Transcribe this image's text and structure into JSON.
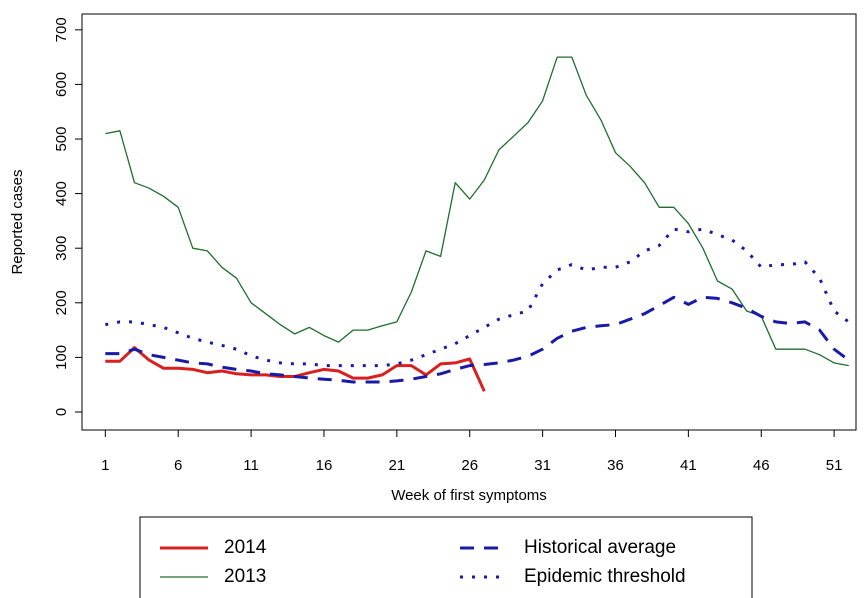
{
  "chart_data": {
    "type": "line",
    "x_label": "Week of first symptoms",
    "y_label": "Reported cases",
    "x": [
      1,
      2,
      3,
      4,
      5,
      6,
      7,
      8,
      9,
      10,
      11,
      12,
      13,
      14,
      15,
      16,
      17,
      18,
      19,
      20,
      21,
      22,
      23,
      24,
      25,
      26,
      27,
      28,
      29,
      30,
      31,
      32,
      33,
      34,
      35,
      36,
      37,
      38,
      39,
      40,
      41,
      42,
      43,
      44,
      45,
      46,
      47,
      48,
      49,
      50,
      51,
      52
    ],
    "xlim": [
      -0.6,
      52.5
    ],
    "xticks": [
      1,
      6,
      11,
      16,
      21,
      26,
      31,
      36,
      41,
      46,
      51
    ],
    "ylim": [
      -33,
      729
    ],
    "yticks": [
      0,
      100,
      200,
      300,
      400,
      500,
      600,
      700
    ],
    "legend": "bottom",
    "series": [
      {
        "name": "2014",
        "color": "#d92020",
        "style": "solid",
        "linewidth": 3,
        "values": [
          93,
          93,
          118,
          95,
          80,
          80,
          78,
          72,
          75,
          70,
          68,
          68,
          65,
          65,
          72,
          78,
          75,
          62,
          62,
          68,
          85,
          85,
          68,
          88,
          90,
          97,
          38,
          null,
          null,
          null,
          null,
          null,
          null,
          null,
          null,
          null,
          null,
          null,
          null,
          null,
          null,
          null,
          null,
          null,
          null,
          null,
          null,
          null,
          null,
          null,
          null,
          null
        ]
      },
      {
        "name": "2013",
        "color": "#1e6e2e",
        "style": "solid",
        "linewidth": 1.3,
        "values": [
          510,
          515,
          420,
          410,
          395,
          375,
          300,
          295,
          265,
          245,
          200,
          180,
          160,
          143,
          155,
          140,
          128,
          150,
          150,
          158,
          165,
          220,
          295,
          285,
          420,
          390,
          425,
          480,
          505,
          530,
          570,
          650,
          650,
          580,
          535,
          475,
          450,
          420,
          375,
          375,
          345,
          300,
          240,
          225,
          185,
          175,
          115,
          115,
          115,
          105,
          90,
          85
        ]
      },
      {
        "name": "Historical average",
        "color": "#1a1aa8",
        "style": "dashed",
        "linewidth": 3,
        "values": [
          107,
          107,
          115,
          105,
          100,
          95,
          90,
          88,
          82,
          78,
          75,
          70,
          68,
          65,
          62,
          60,
          58,
          55,
          55,
          55,
          57,
          60,
          65,
          70,
          78,
          85,
          87,
          90,
          95,
          102,
          115,
          135,
          148,
          155,
          158,
          160,
          170,
          180,
          195,
          210,
          197,
          210,
          208,
          200,
          190,
          175,
          165,
          162,
          165,
          150,
          115,
          95
        ]
      },
      {
        "name": "Epidemic threshold",
        "color": "#1a1aa8",
        "style": "dotted",
        "linewidth": 3,
        "values": [
          160,
          165,
          165,
          160,
          155,
          145,
          135,
          128,
          122,
          115,
          103,
          95,
          90,
          88,
          88,
          85,
          85,
          85,
          85,
          85,
          88,
          95,
          105,
          115,
          125,
          140,
          155,
          170,
          178,
          185,
          235,
          260,
          270,
          260,
          265,
          265,
          275,
          295,
          305,
          335,
          330,
          335,
          325,
          315,
          295,
          265,
          270,
          270,
          275,
          245,
          185,
          165
        ]
      }
    ]
  }
}
